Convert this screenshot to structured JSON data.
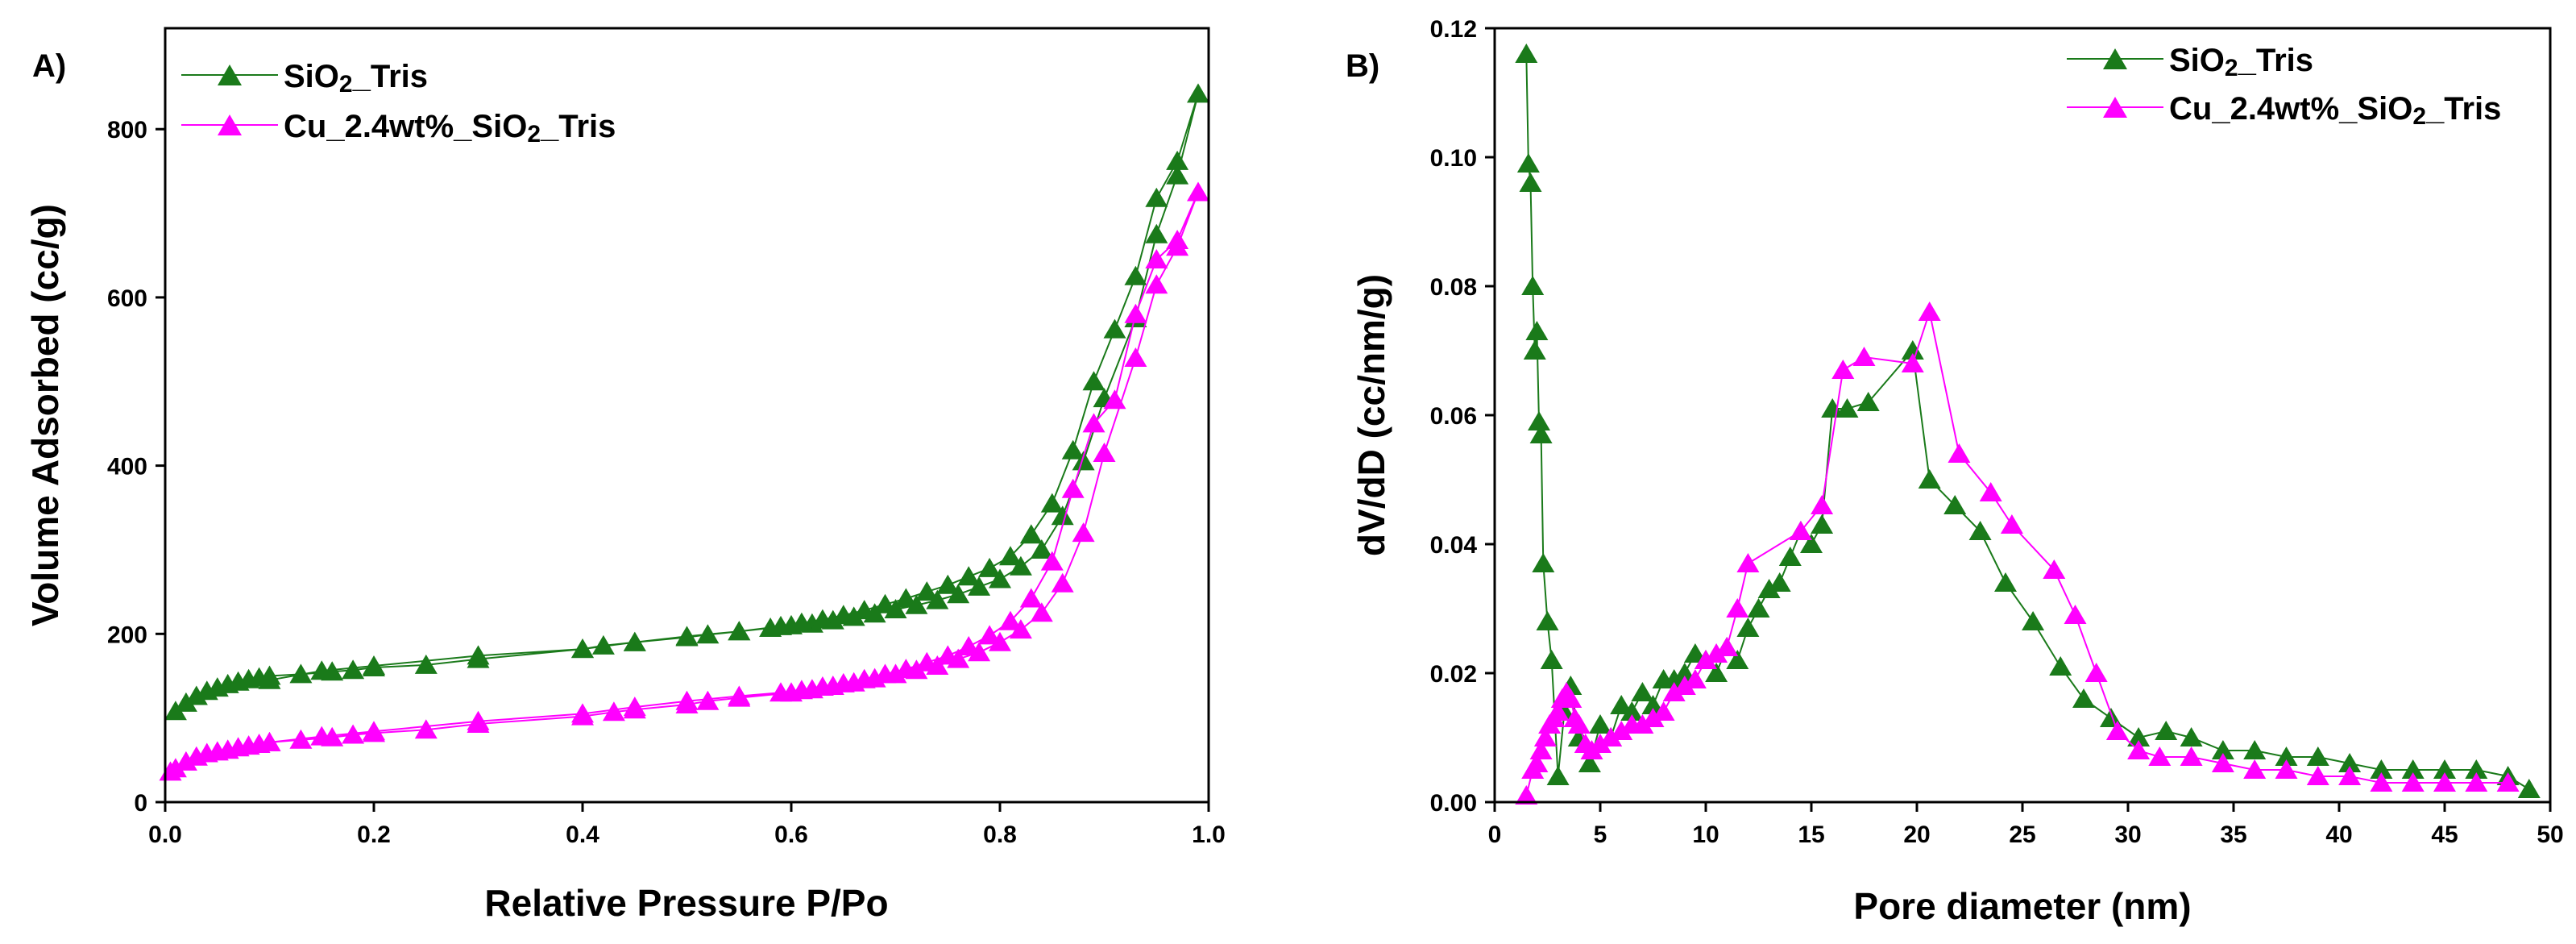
{
  "chart_data": [
    {
      "type": "line",
      "panel_label": "A)",
      "xlabel": "Relative Pressure P/Po",
      "ylabel": "Volume Adsorbed (cc/g)",
      "xlim": [
        0,
        1.0
      ],
      "ylim": [
        0,
        920
      ],
      "xticks": [
        0.0,
        0.2,
        0.4,
        0.6,
        0.8,
        1.0
      ],
      "xtick_labels": [
        "0.0",
        "0.2",
        "0.4",
        "0.6",
        "0.8",
        "1.0"
      ],
      "yticks": [
        0,
        200,
        400,
        600,
        800
      ],
      "ytick_labels": [
        "0",
        "200",
        "400",
        "600",
        "800"
      ],
      "grid": false,
      "legend_position": "top-left",
      "marker": "triangle",
      "series": [
        {
          "name": "SiO2_Tris",
          "name_main": "SiO",
          "name_sub": "2",
          "name_rest": "_Tris",
          "color": "#1a7a1a",
          "x": [
            0.01,
            0.02,
            0.03,
            0.04,
            0.05,
            0.06,
            0.07,
            0.08,
            0.09,
            0.1,
            0.13,
            0.16,
            0.18,
            0.2,
            0.25,
            0.3,
            0.4,
            0.42,
            0.45,
            0.5,
            0.52,
            0.55,
            0.58,
            0.6,
            0.62,
            0.64,
            0.66,
            0.68,
            0.7,
            0.72,
            0.74,
            0.76,
            0.78,
            0.8,
            0.82,
            0.84,
            0.86,
            0.88,
            0.9,
            0.93,
            0.95,
            0.97,
            0.99,
            0.97,
            0.95,
            0.93,
            0.91,
            0.89,
            0.87,
            0.85,
            0.83,
            0.81,
            0.79,
            0.77,
            0.75,
            0.73,
            0.71,
            0.69,
            0.67,
            0.65,
            0.63,
            0.61,
            0.59,
            0.55,
            0.5,
            0.45,
            0.4,
            0.3,
            0.2,
            0.15,
            0.1
          ],
          "y": [
            108,
            118,
            126,
            132,
            136,
            140,
            143,
            146,
            148,
            150,
            152,
            155,
            157,
            160,
            163,
            170,
            182,
            186,
            190,
            196,
            199,
            203,
            207,
            210,
            212,
            216,
            220,
            224,
            229,
            234,
            240,
            247,
            256,
            265,
            280,
            300,
            340,
            405,
            480,
            575,
            675,
            745,
            842,
            762,
            718,
            625,
            562,
            500,
            418,
            355,
            318,
            292,
            278,
            268,
            258,
            250,
            242,
            235,
            228,
            222,
            217,
            213,
            209,
            203,
            197,
            190,
            182,
            174,
            162,
            156,
            145
          ]
        },
        {
          "name": "Cu_2.4wt%_SiO2_Tris",
          "name_main": "Cu_2.4wt%_SiO",
          "name_sub": "2",
          "name_rest": "_Tris",
          "color": "#ff00ff",
          "x": [
            0.005,
            0.01,
            0.02,
            0.03,
            0.04,
            0.05,
            0.06,
            0.07,
            0.08,
            0.09,
            0.1,
            0.13,
            0.16,
            0.18,
            0.2,
            0.25,
            0.3,
            0.4,
            0.43,
            0.45,
            0.5,
            0.52,
            0.55,
            0.6,
            0.62,
            0.64,
            0.66,
            0.68,
            0.7,
            0.72,
            0.74,
            0.76,
            0.78,
            0.8,
            0.82,
            0.84,
            0.86,
            0.88,
            0.9,
            0.93,
            0.95,
            0.97,
            0.99,
            0.97,
            0.95,
            0.93,
            0.91,
            0.89,
            0.87,
            0.85,
            0.83,
            0.81,
            0.79,
            0.77,
            0.75,
            0.73,
            0.71,
            0.69,
            0.67,
            0.65,
            0.63,
            0.61,
            0.59,
            0.55,
            0.5,
            0.45,
            0.4,
            0.3,
            0.2,
            0.15,
            0.1
          ],
          "y": [
            36,
            40,
            48,
            54,
            58,
            60,
            62,
            65,
            67,
            69,
            71,
            74,
            77,
            80,
            82,
            86,
            93,
            102,
            107,
            110,
            116,
            120,
            124,
            130,
            134,
            138,
            142,
            147,
            152,
            157,
            162,
            170,
            178,
            190,
            205,
            225,
            260,
            320,
            415,
            528,
            615,
            660,
            725,
            668,
            645,
            580,
            478,
            450,
            372,
            286,
            242,
            215,
            198,
            185,
            174,
            166,
            158,
            152,
            146,
            141,
            137,
            133,
            130,
            126,
            120,
            113,
            105,
            96,
            84,
            78,
            71
          ]
        }
      ]
    },
    {
      "type": "line",
      "panel_label": "B)",
      "xlabel": "Pore diameter (nm)",
      "ylabel": "dV/dD (cc/nm/g)",
      "xlim": [
        0,
        50
      ],
      "ylim": [
        0,
        0.12
      ],
      "xticks": [
        0,
        5,
        10,
        15,
        20,
        25,
        30,
        35,
        40,
        45,
        50
      ],
      "xtick_labels": [
        "0",
        "5",
        "10",
        "15",
        "20",
        "25",
        "30",
        "35",
        "40",
        "45",
        "50"
      ],
      "yticks": [
        0,
        0.02,
        0.04,
        0.06,
        0.08,
        0.1,
        0.12
      ],
      "ytick_labels": [
        "0.00",
        "0.02",
        "0.04",
        "0.06",
        "0.08",
        "0.10",
        "0.12"
      ],
      "grid": false,
      "legend_position": "top-right",
      "marker": "triangle",
      "series": [
        {
          "name": "SiO2_Tris",
          "name_main": "SiO",
          "name_sub": "2",
          "name_rest": "_Tris",
          "color": "#1a7a1a",
          "x": [
            1.5,
            1.6,
            1.7,
            1.8,
            1.9,
            2.0,
            2.1,
            2.2,
            2.3,
            2.5,
            2.7,
            3.0,
            3.3,
            3.6,
            4.0,
            4.5,
            5.0,
            5.5,
            6.0,
            6.5,
            7.0,
            7.5,
            8.0,
            8.5,
            9.0,
            9.5,
            10.0,
            10.5,
            11.0,
            11.5,
            12.0,
            12.5,
            13.0,
            13.5,
            14.0,
            14.5,
            15.0,
            15.5,
            16.0,
            16.7,
            17.7,
            19.8,
            20.6,
            21.8,
            23.0,
            24.2,
            25.5,
            26.8,
            27.9,
            29.2,
            30.5,
            31.8,
            33.0,
            34.5,
            36.0,
            37.5,
            39.0,
            40.5,
            42.0,
            43.5,
            45.0,
            46.5,
            48.0,
            49.0
          ],
          "y": [
            0.116,
            0.099,
            0.096,
            0.08,
            0.07,
            0.073,
            0.059,
            0.057,
            0.037,
            0.028,
            0.022,
            0.004,
            0.014,
            0.018,
            0.01,
            0.006,
            0.012,
            0.01,
            0.015,
            0.014,
            0.017,
            0.015,
            0.019,
            0.019,
            0.02,
            0.023,
            0.022,
            0.02,
            0.024,
            0.022,
            0.027,
            0.03,
            0.033,
            0.034,
            0.038,
            0.042,
            0.04,
            0.043,
            0.061,
            0.061,
            0.062,
            0.07,
            0.05,
            0.046,
            0.042,
            0.034,
            0.028,
            0.021,
            0.016,
            0.013,
            0.01,
            0.011,
            0.01,
            0.008,
            0.008,
            0.007,
            0.007,
            0.006,
            0.005,
            0.005,
            0.005,
            0.005,
            0.004,
            0.002
          ]
        },
        {
          "name": "Cu_2.4wt%_SiO2_Tris",
          "name_main": "Cu_2.4wt%_SiO",
          "name_sub": "2",
          "name_rest": "_Tris",
          "color": "#ff00ff",
          "x": [
            1.5,
            1.8,
            2.0,
            2.2,
            2.4,
            2.6,
            2.8,
            3.0,
            3.2,
            3.4,
            3.6,
            3.8,
            4.0,
            4.3,
            4.6,
            5.0,
            5.5,
            6.0,
            6.5,
            7.0,
            7.5,
            8.0,
            8.5,
            9.0,
            9.5,
            10.0,
            10.5,
            11.0,
            11.5,
            12.0,
            14.5,
            15.5,
            16.5,
            17.5,
            19.8,
            20.6,
            22.0,
            23.5,
            24.5,
            26.5,
            27.5,
            28.5,
            29.5,
            30.5,
            31.5,
            33.0,
            34.5,
            36.0,
            37.5,
            39.0,
            40.5,
            42.0,
            43.5,
            45.0,
            46.5,
            48.0
          ],
          "y": [
            0.001,
            0.005,
            0.006,
            0.008,
            0.01,
            0.012,
            0.013,
            0.014,
            0.016,
            0.017,
            0.016,
            0.013,
            0.012,
            0.009,
            0.008,
            0.009,
            0.01,
            0.011,
            0.012,
            0.012,
            0.013,
            0.014,
            0.017,
            0.018,
            0.019,
            0.022,
            0.023,
            0.024,
            0.03,
            0.037,
            0.042,
            0.046,
            0.067,
            0.069,
            0.068,
            0.076,
            0.054,
            0.048,
            0.043,
            0.036,
            0.029,
            0.02,
            0.011,
            0.008,
            0.007,
            0.007,
            0.006,
            0.005,
            0.005,
            0.004,
            0.004,
            0.003,
            0.003,
            0.003,
            0.003,
            0.003
          ]
        }
      ]
    }
  ]
}
